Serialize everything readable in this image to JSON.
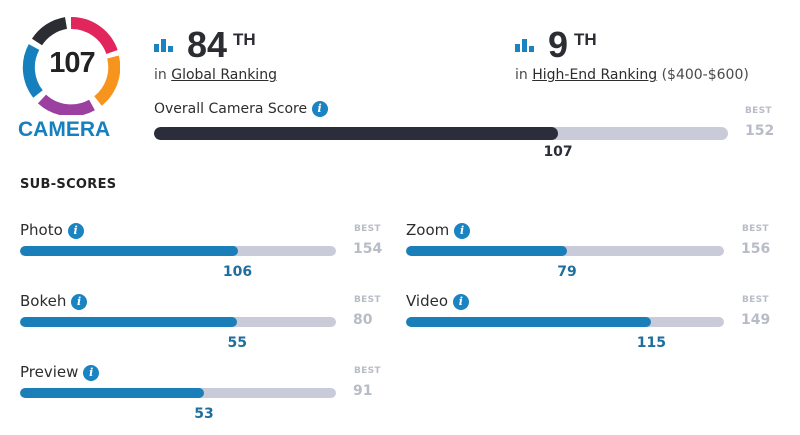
{
  "badge": {
    "score": "107",
    "label": "CAMERA",
    "colors": [
      "#e0265c",
      "#f7941d",
      "#9b3fa0",
      "#1580bd",
      "#2b2d33"
    ]
  },
  "rankings": [
    {
      "rank": "84",
      "suffix": "TH",
      "prefix": "in",
      "link": "Global Ranking",
      "extra": ""
    },
    {
      "rank": "9",
      "suffix": "TH",
      "prefix": "in",
      "link": "High-End Ranking",
      "extra": "($400-$600)"
    }
  ],
  "overall": {
    "label": "Overall Camera Score",
    "value": 107,
    "best_tag": "BEST",
    "best": 152
  },
  "subscores_title": "SUB-SCORES",
  "subscores": [
    {
      "label": "Photo",
      "value": 106,
      "best_tag": "BEST",
      "best": 154
    },
    {
      "label": "Zoom",
      "value": 79,
      "best_tag": "BEST",
      "best": 156
    },
    {
      "label": "Bokeh",
      "value": 55,
      "best_tag": "BEST",
      "best": 80
    },
    {
      "label": "Video",
      "value": 115,
      "best_tag": "BEST",
      "best": 149
    },
    {
      "label": "Preview",
      "value": 53,
      "best_tag": "BEST",
      "best": 91
    }
  ],
  "info_icon_glyph": "i"
}
